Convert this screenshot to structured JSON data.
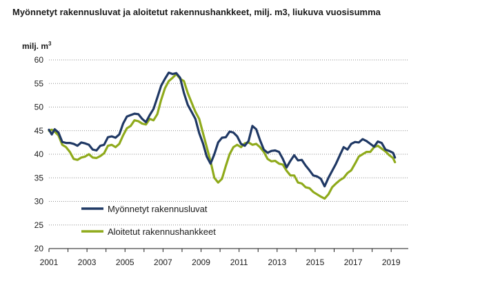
{
  "chart_data": {
    "type": "line",
    "title": "Myönnetyt rakennusluvat ja aloitetut rakennushankkeet, milj. m3, liukuva vuosisumma",
    "ylabel": "milj. m",
    "ylabel_sup": "3",
    "xlabel": "",
    "ylim": [
      20,
      60
    ],
    "xlim": [
      2001,
      2019.9
    ],
    "yticks": [
      20,
      25,
      30,
      35,
      40,
      45,
      50,
      55,
      60
    ],
    "xticks": [
      "2001",
      "2003",
      "2005",
      "2007",
      "2009",
      "2011",
      "2013",
      "2015",
      "2017",
      "2019"
    ],
    "grid": true,
    "legend_position": "bottom-left",
    "series": [
      {
        "name": "Myönnetyt rakennusluvat",
        "color": "#1f3864",
        "x": [
          2001.0,
          2001.15,
          2001.3,
          2001.5,
          2001.7,
          2001.9,
          2002.1,
          2002.3,
          2002.5,
          2002.7,
          2002.9,
          2003.1,
          2003.3,
          2003.5,
          2003.7,
          2003.9,
          2004.1,
          2004.3,
          2004.5,
          2004.7,
          2004.9,
          2005.1,
          2005.3,
          2005.5,
          2005.7,
          2005.9,
          2006.1,
          2006.3,
          2006.5,
          2006.7,
          2006.9,
          2007.1,
          2007.3,
          2007.5,
          2007.7,
          2007.9,
          2008.1,
          2008.3,
          2008.5,
          2008.7,
          2008.9,
          2009.1,
          2009.3,
          2009.5,
          2009.7,
          2009.9,
          2010.1,
          2010.3,
          2010.5,
          2010.7,
          2010.9,
          2011.1,
          2011.3,
          2011.5,
          2011.7,
          2011.9,
          2012.1,
          2012.3,
          2012.5,
          2012.7,
          2012.9,
          2013.1,
          2013.3,
          2013.5,
          2013.7,
          2013.9,
          2014.1,
          2014.3,
          2014.5,
          2014.7,
          2014.9,
          2015.1,
          2015.3,
          2015.5,
          2015.7,
          2015.9,
          2016.1,
          2016.3,
          2016.5,
          2016.7,
          2016.9,
          2017.1,
          2017.3,
          2017.5,
          2017.7,
          2017.9,
          2018.1,
          2018.3,
          2018.5,
          2018.7,
          2018.9,
          2019.1,
          2019.2
        ],
        "values": [
          45.2,
          44.2,
          45.3,
          44.6,
          42.6,
          42.4,
          42.4,
          42.2,
          41.8,
          42.5,
          42.3,
          42.0,
          41.0,
          40.8,
          41.8,
          42.0,
          43.6,
          43.8,
          43.5,
          44.2,
          46.5,
          48.0,
          48.3,
          48.6,
          48.5,
          47.5,
          46.8,
          48.3,
          49.6,
          52.0,
          54.5,
          56.0,
          57.3,
          57.0,
          57.2,
          56.2,
          53.0,
          50.5,
          49.0,
          47.5,
          44.5,
          42.3,
          39.5,
          38.0,
          40.0,
          42.5,
          43.5,
          43.6,
          44.8,
          44.6,
          43.8,
          42.2,
          41.8,
          42.8,
          46.0,
          45.3,
          43.0,
          41.0,
          40.3,
          40.7,
          40.8,
          40.5,
          39.0,
          37.2,
          38.6,
          39.8,
          38.7,
          38.8,
          37.6,
          36.6,
          35.5,
          35.3,
          34.8,
          33.2,
          35.0,
          36.5,
          38.0,
          39.8,
          41.5,
          41.0,
          42.2,
          42.6,
          42.5,
          43.2,
          42.8,
          42.2,
          41.6,
          42.7,
          42.4,
          41.0,
          40.7,
          40.3,
          39.3
        ]
      },
      {
        "name": "Aloitetut rakennushankkeet",
        "color": "#8faa1b",
        "x": [
          2001.0,
          2001.15,
          2001.3,
          2001.5,
          2001.7,
          2001.9,
          2002.1,
          2002.3,
          2002.5,
          2002.7,
          2002.9,
          2003.1,
          2003.3,
          2003.5,
          2003.7,
          2003.9,
          2004.1,
          2004.3,
          2004.5,
          2004.7,
          2004.9,
          2005.1,
          2005.3,
          2005.5,
          2005.7,
          2005.9,
          2006.1,
          2006.3,
          2006.5,
          2006.7,
          2006.9,
          2007.1,
          2007.3,
          2007.5,
          2007.7,
          2007.9,
          2008.1,
          2008.3,
          2008.5,
          2008.7,
          2008.9,
          2009.1,
          2009.3,
          2009.5,
          2009.7,
          2009.9,
          2010.1,
          2010.3,
          2010.5,
          2010.7,
          2010.9,
          2011.1,
          2011.3,
          2011.5,
          2011.7,
          2011.9,
          2012.1,
          2012.3,
          2012.5,
          2012.7,
          2012.9,
          2013.1,
          2013.3,
          2013.5,
          2013.7,
          2013.9,
          2014.1,
          2014.3,
          2014.5,
          2014.7,
          2014.9,
          2015.1,
          2015.3,
          2015.5,
          2015.7,
          2015.9,
          2016.1,
          2016.3,
          2016.5,
          2016.7,
          2016.9,
          2017.1,
          2017.3,
          2017.5,
          2017.7,
          2017.9,
          2018.1,
          2018.3,
          2018.5,
          2018.7,
          2018.9,
          2019.1,
          2019.2
        ],
        "values": [
          45.0,
          45.2,
          44.8,
          44.0,
          42.0,
          41.5,
          40.5,
          39.0,
          38.8,
          39.3,
          39.5,
          40.0,
          39.3,
          39.2,
          39.6,
          40.2,
          41.8,
          42.0,
          41.5,
          42.2,
          44.0,
          45.5,
          46.0,
          47.2,
          47.0,
          46.5,
          46.3,
          47.5,
          47.2,
          48.5,
          51.5,
          54.0,
          55.5,
          56.2,
          57.0,
          56.0,
          55.5,
          53.0,
          51.0,
          49.0,
          47.5,
          44.5,
          41.5,
          38.5,
          35.0,
          34.0,
          34.8,
          37.5,
          40.0,
          41.5,
          42.0,
          41.5,
          42.3,
          42.5,
          42.0,
          42.2,
          41.5,
          40.5,
          39.0,
          38.5,
          38.6,
          38.0,
          37.8,
          36.5,
          35.5,
          35.5,
          34.0,
          33.8,
          33.0,
          32.8,
          32.0,
          31.5,
          31.0,
          30.6,
          31.5,
          33.0,
          33.8,
          34.5,
          35.0,
          36.0,
          36.6,
          38.0,
          39.5,
          40.0,
          40.5,
          40.5,
          41.5,
          41.8,
          41.2,
          40.6,
          39.8,
          39.2,
          38.3
        ]
      }
    ]
  }
}
